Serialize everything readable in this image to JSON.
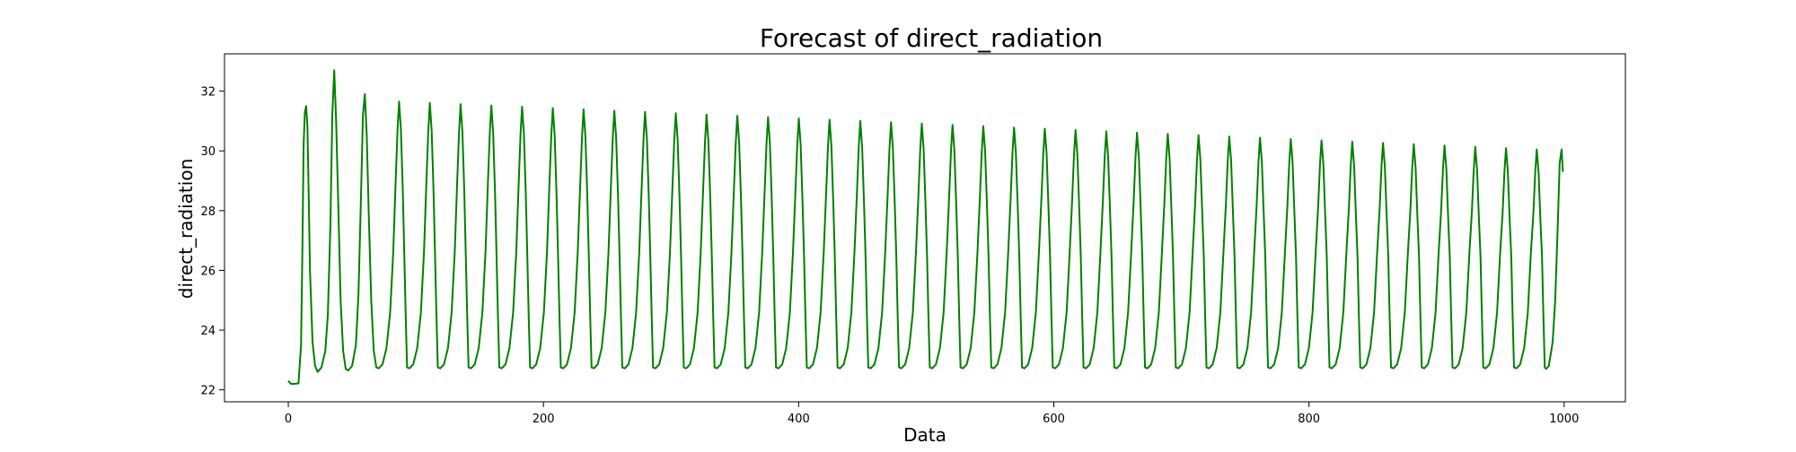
{
  "chart_data": {
    "type": "line",
    "title": "Forecast of direct_radiation",
    "xlabel": "Data",
    "ylabel": "direct_radiation",
    "xlim": [
      -50,
      1048
    ],
    "ylim": [
      21.6,
      33.25
    ],
    "xticks": [
      0,
      200,
      400,
      600,
      800,
      1000
    ],
    "yticks": [
      22,
      24,
      26,
      28,
      30,
      32
    ],
    "xtick_labels": [
      "0",
      "200",
      "400",
      "600",
      "800",
      "1000"
    ],
    "ytick_labels": [
      "22",
      "24",
      "26",
      "28",
      "30",
      "32"
    ],
    "grid": false,
    "legend": "none",
    "series": [
      {
        "color": "#008000",
        "x_start": 0,
        "x_end": 999,
        "values": [
          [
            0,
            22.3
          ],
          [
            2,
            22.2
          ],
          [
            5,
            22.2
          ],
          [
            8,
            22.22
          ],
          [
            10,
            23.5
          ],
          [
            11,
            26.5
          ],
          [
            12,
            30.2
          ],
          [
            13,
            31.3
          ],
          [
            14,
            31.5
          ],
          [
            15,
            30.8
          ],
          [
            16,
            28.5
          ],
          [
            17,
            26.0
          ],
          [
            19,
            23.6
          ],
          [
            21,
            22.8
          ],
          [
            23,
            22.6
          ],
          [
            26,
            22.75
          ],
          [
            29,
            23.3
          ],
          [
            31,
            24.5
          ],
          [
            33,
            27.5
          ],
          [
            34.5,
            31.2
          ],
          [
            36,
            32.7
          ],
          [
            37.5,
            31.0
          ],
          [
            39,
            28.5
          ],
          [
            41,
            25.0
          ],
          [
            43,
            23.3
          ],
          [
            45,
            22.7
          ],
          [
            47,
            22.65
          ],
          [
            50,
            22.8
          ],
          [
            53,
            23.5
          ],
          [
            55,
            25.2
          ],
          [
            57,
            28.5
          ],
          [
            58.5,
            31.2
          ],
          [
            60,
            31.9
          ],
          [
            61.5,
            30.5
          ],
          [
            63,
            28.0
          ],
          [
            65,
            25.0
          ],
          [
            67,
            23.3
          ],
          [
            69,
            22.75
          ]
        ],
        "periodic": {
          "start_x": 69,
          "period": 24.1,
          "cycles": 38,
          "peak_first": 31.65,
          "peak_last": 30.05,
          "trough": 22.7
        },
        "end": [
          [
            986,
            22.7
          ],
          [
            988,
            22.8
          ],
          [
            991,
            23.6
          ],
          [
            993,
            25.0
          ],
          [
            995,
            27.5
          ],
          [
            996.5,
            29.6
          ],
          [
            998,
            30.05
          ],
          [
            999,
            29.3
          ]
        ]
      }
    ]
  }
}
